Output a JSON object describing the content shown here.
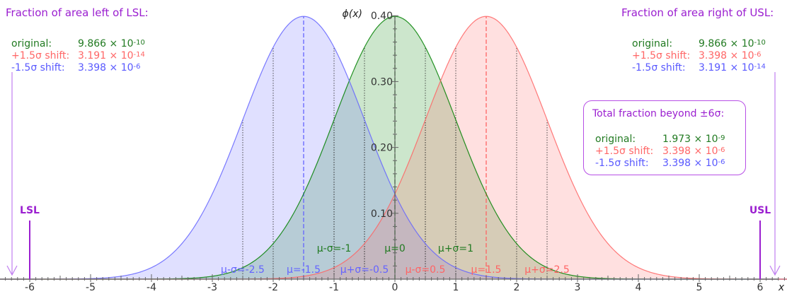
{
  "chart_data": {
    "type": "area",
    "xlabel": "x",
    "ylabel": "ϕ(x)",
    "xlim": [
      -6.5,
      6.5
    ],
    "ylim": [
      0,
      0.4
    ],
    "x_ticks": [
      -6,
      -5,
      -4,
      -3,
      -2,
      -1,
      0,
      1,
      2,
      3,
      4,
      5,
      6
    ],
    "x_tick_labels": [
      "-6",
      "-5",
      "-4",
      "-3",
      "-2",
      "-1",
      "0",
      "1",
      "2",
      "3",
      "4",
      "5",
      "6"
    ],
    "y_ticks": [
      0.1,
      0.2,
      0.3,
      0.4
    ],
    "y_tick_labels": [
      "0.10",
      "0.20",
      "0.30",
      "0.40"
    ],
    "series": [
      {
        "key": "orig",
        "mean": 0,
        "sd": 1,
        "color": "#008000"
      },
      {
        "key": "minus",
        "mean": -1.5,
        "sd": 1,
        "color": "#6464ff"
      },
      {
        "key": "plus",
        "mean": 1.5,
        "sd": 1,
        "color": "#ff6464"
      }
    ],
    "annotations": [
      {
        "label": "μ-σ=-1",
        "x": -1,
        "color": "#217a21",
        "row": "upper"
      },
      {
        "label": "μ=0",
        "x": 0,
        "color": "#217a21",
        "row": "upper"
      },
      {
        "label": "μ+σ=1",
        "x": 1,
        "color": "#217a21",
        "row": "upper"
      },
      {
        "label": "μ-σ=-2.5",
        "x": -2.5,
        "color": "#6464ff",
        "row": "lower"
      },
      {
        "label": "μ=-1.5",
        "x": -1.5,
        "color": "#6464ff",
        "row": "lower"
      },
      {
        "label": "μ+σ=-0.5",
        "x": -0.5,
        "color": "#6464ff",
        "row": "lower"
      },
      {
        "label": "μ-σ=0.5",
        "x": 0.5,
        "color": "#ff6464",
        "row": "lower"
      },
      {
        "label": "μ=1.5",
        "x": 1.5,
        "color": "#ff6464",
        "row": "lower"
      },
      {
        "label": "μ+σ=2.5",
        "x": 2.5,
        "color": "#ff6464",
        "row": "lower"
      }
    ],
    "limits": [
      {
        "label": "LSL",
        "x": -6
      },
      {
        "label": "USL",
        "x": 6
      }
    ],
    "colors": {
      "limit": "#9b1fd0",
      "axis": "#666666"
    }
  },
  "left_panel": {
    "title": "Fraction of area left of LSL:",
    "rows": [
      {
        "label": "original:",
        "mantissa": "9.866 × 10",
        "exponent": "-10"
      },
      {
        "label": "+1.5σ shift:",
        "mantissa": "3.191 × 10",
        "exponent": "-14"
      },
      {
        "label": "-1.5σ shift:",
        "mantissa": "3.398 × 10",
        "exponent": "-6"
      }
    ]
  },
  "right_panel": {
    "title": "Fraction of area right of USL:",
    "rows": [
      {
        "label": "original:",
        "mantissa": "9.866 × 10",
        "exponent": "-10"
      },
      {
        "label": "+1.5σ shift:",
        "mantissa": "3.398 × 10",
        "exponent": "-6"
      },
      {
        "label": "-1.5σ shift:",
        "mantissa": "3.191 × 10",
        "exponent": "-14"
      }
    ]
  },
  "total_panel": {
    "title": "Total fraction beyond ±6σ:",
    "rows": [
      {
        "label": "original:",
        "mantissa": "1.973 × 10",
        "exponent": "-9"
      },
      {
        "label": "+1.5σ shift:",
        "mantissa": "3.398 × 10",
        "exponent": "-6"
      },
      {
        "label": "-1.5σ shift:",
        "mantissa": "3.398 × 10",
        "exponent": "-6"
      }
    ]
  }
}
